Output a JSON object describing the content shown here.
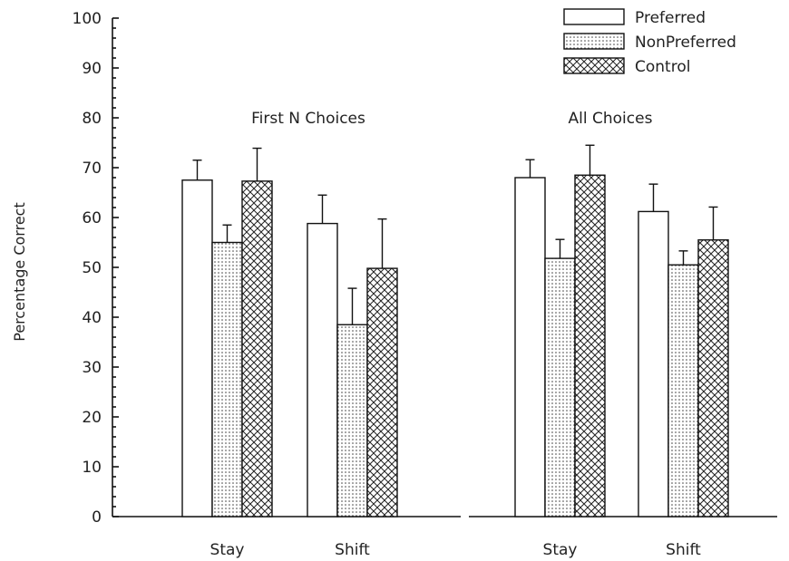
{
  "chart_data": {
    "type": "bar",
    "ylabel": "Percentage Correct",
    "ylim": [
      0,
      100
    ],
    "yticks": [
      0,
      10,
      20,
      30,
      40,
      50,
      60,
      70,
      80,
      90,
      100
    ],
    "legend": {
      "placement": "top-right",
      "entries": [
        "Preferred",
        "NonPreferred",
        "Control"
      ]
    },
    "series_patterns": [
      "white",
      "dotted",
      "crosshatch"
    ],
    "panels": [
      {
        "title": "First N Choices",
        "categories": [
          "Stay",
          "Shift"
        ],
        "series": [
          {
            "name": "Preferred",
            "values": [
              67.5,
              58.8
            ],
            "errors": [
              4.0,
              5.7
            ]
          },
          {
            "name": "NonPreferred",
            "values": [
              55.0,
              38.5
            ],
            "errors": [
              3.5,
              7.3
            ]
          },
          {
            "name": "Control",
            "values": [
              67.3,
              49.8
            ],
            "errors": [
              6.6,
              9.9
            ]
          }
        ]
      },
      {
        "title": "All Choices",
        "categories": [
          "Stay",
          "Shift"
        ],
        "series": [
          {
            "name": "Preferred",
            "values": [
              68.0,
              61.2
            ],
            "errors": [
              3.6,
              5.5
            ]
          },
          {
            "name": "NonPreferred",
            "values": [
              51.8,
              50.5
            ],
            "errors": [
              3.8,
              2.8
            ]
          },
          {
            "name": "Control",
            "values": [
              68.5,
              55.5
            ],
            "errors": [
              6.0,
              6.6
            ]
          }
        ]
      }
    ]
  }
}
